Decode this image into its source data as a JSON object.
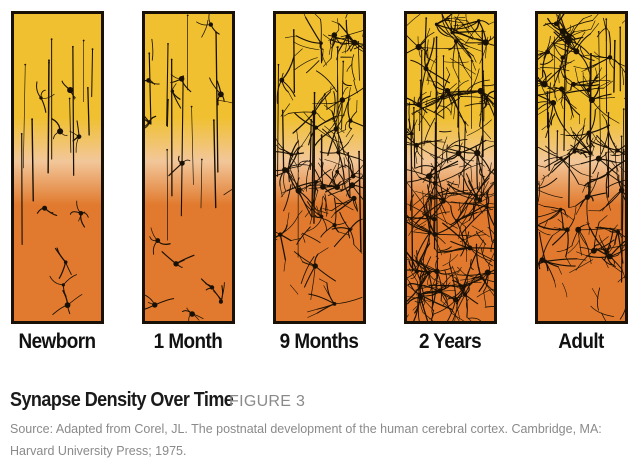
{
  "figure": {
    "panels": [
      {
        "label": "Newborn",
        "density": 0.1
      },
      {
        "label": "1 Month",
        "density": 0.2
      },
      {
        "label": "9 Months",
        "density": 0.65
      },
      {
        "label": "2 Years",
        "density": 1.0
      },
      {
        "label": "Adult",
        "density": 0.75
      }
    ],
    "colors": {
      "top": "#f0c030",
      "middle": "#f2c79a",
      "bottom": "#e17a2e",
      "ink": "#1a1106",
      "border": "#1a1106"
    }
  },
  "caption": {
    "title": "Synapse Density Over Time",
    "figure_label": "FIGURE 3",
    "source": "Source: Adapted from Corel, JL. The postnatal development of the human cerebral cortex. Cambridge, MA: Harvard University Press; 1975."
  }
}
